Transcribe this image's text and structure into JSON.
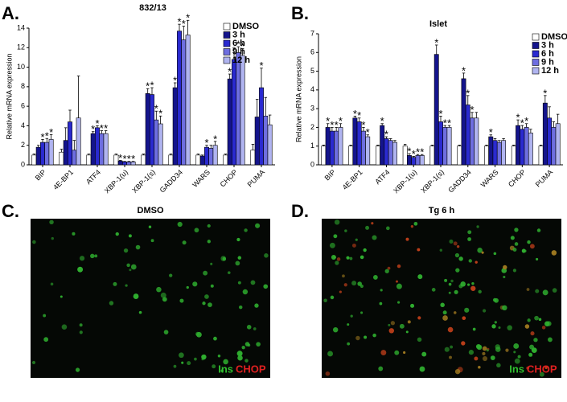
{
  "chart_data": [
    {
      "type": "bar",
      "panel": "A.",
      "title": "832/13",
      "y_label": "Relative mRNA expression",
      "categories": [
        "BIP",
        "4E-BP1",
        "ATF4",
        "XBP-1(u)",
        "XBP-1(s)",
        "GADD34",
        "WARS",
        "CHOP",
        "PUMA"
      ],
      "ylim": [
        0,
        14
      ],
      "yticks": [
        0,
        2,
        4,
        6,
        8,
        10,
        12,
        14
      ],
      "series": [
        {
          "name": "DMSO",
          "color": "#ffffff",
          "values": [
            1,
            1.3,
            1,
            1,
            1,
            1,
            1,
            1,
            1.5
          ],
          "errors": [
            0.1,
            0.3,
            0.1,
            0.1,
            0.1,
            0.1,
            0.1,
            0.1,
            0.6
          ],
          "markers": [
            null,
            null,
            null,
            null,
            null,
            null,
            null,
            null,
            null
          ]
        },
        {
          "name": "3 h",
          "color": "#14148c",
          "values": [
            1.8,
            2.5,
            3.2,
            0.4,
            7.3,
            7.9,
            0.9,
            8.8,
            4.9
          ],
          "errors": [
            0.2,
            1.3,
            0.2,
            0.05,
            0.5,
            0.5,
            0.1,
            0.5,
            1.8
          ],
          "markers": [
            null,
            null,
            "*",
            "*",
            "*",
            "*",
            null,
            "*",
            null
          ]
        },
        {
          "name": "6 h",
          "color": "#2a2ad0",
          "values": [
            2.3,
            4.4,
            3.8,
            0.3,
            7.2,
            13.7,
            1.8,
            10.8,
            7.9
          ],
          "errors": [
            0.3,
            1.2,
            0.2,
            0.05,
            0.7,
            0.7,
            0.2,
            0.7,
            2.0
          ],
          "markers": [
            "*",
            null,
            "*",
            "*",
            "*",
            "*",
            "*",
            "*",
            "*"
          ]
        },
        {
          "name": "9 h",
          "color": "#6e6ee0",
          "values": [
            2.3,
            1.5,
            3.2,
            0.3,
            4.6,
            12.8,
            1.7,
            11.5,
            5.0
          ],
          "errors": [
            0.4,
            1.0,
            0.3,
            0.05,
            0.9,
            1.4,
            0.3,
            0.6,
            1.9
          ],
          "markers": [
            "*",
            null,
            "*",
            "*",
            "*",
            "*",
            null,
            "*",
            null
          ]
        },
        {
          "name": "12 h",
          "color": "#b0b4f0",
          "values": [
            2.6,
            4.8,
            3.2,
            0.3,
            4.2,
            13.3,
            2.0,
            11.2,
            4.1
          ],
          "errors": [
            0.5,
            4.3,
            0.3,
            0.05,
            0.8,
            1.5,
            0.4,
            0.7,
            1.0
          ],
          "markers": [
            "*",
            null,
            "*",
            "*",
            "*",
            "*",
            "*",
            "*",
            null
          ]
        }
      ]
    },
    {
      "type": "bar",
      "panel": "B.",
      "title": "Islet",
      "y_label": "Relative mRNA expression",
      "categories": [
        "BIP",
        "4E-BP1",
        "ATF4",
        "XBP-1(u)",
        "XBP-1(s)",
        "GADD34",
        "WARS",
        "CHOP",
        "PUMA"
      ],
      "ylim": [
        0,
        7
      ],
      "yticks": [
        0,
        1,
        2,
        3,
        4,
        5,
        6,
        7
      ],
      "series": [
        {
          "name": "DMSO",
          "color": "#ffffff",
          "values": [
            1,
            1,
            1,
            1,
            1,
            1,
            1,
            1,
            1
          ],
          "errors": [
            0.05,
            0.05,
            0.05,
            0.1,
            0.05,
            0.05,
            0.05,
            0.05,
            0.05
          ],
          "markers": [
            null,
            null,
            null,
            null,
            null,
            null,
            null,
            null,
            null
          ]
        },
        {
          "name": "3 h",
          "color": "#14148c",
          "values": [
            2.0,
            2.5,
            2.1,
            0.5,
            5.9,
            4.6,
            1.5,
            2.1,
            3.3
          ],
          "errors": [
            0.2,
            0.1,
            0.1,
            0.1,
            0.5,
            0.3,
            0.1,
            0.3,
            0.4
          ],
          "markers": [
            "*",
            "*",
            "*",
            "*",
            "*",
            "*",
            "*",
            "*",
            "*"
          ]
        },
        {
          "name": "6 h",
          "color": "#2a2ad0",
          "values": [
            1.8,
            2.3,
            1.4,
            0.4,
            2.3,
            3.2,
            1.3,
            1.9,
            2.5
          ],
          "errors": [
            0.2,
            0.2,
            0.1,
            0.05,
            0.3,
            0.5,
            0.1,
            0.2,
            0.6
          ],
          "markers": [
            "*",
            "*",
            "*",
            "*",
            "*",
            "*",
            null,
            "*",
            null
          ]
        },
        {
          "name": "9 h",
          "color": "#6e6ee0",
          "values": [
            1.8,
            1.8,
            1.3,
            0.5,
            2.0,
            2.5,
            1.2,
            2.0,
            2.0
          ],
          "errors": [
            0.2,
            0.2,
            0.1,
            0.05,
            0.1,
            0.3,
            0.1,
            0.2,
            0.3
          ],
          "markers": [
            "*",
            "*",
            null,
            "*",
            "*",
            "*",
            null,
            "*",
            null
          ]
        },
        {
          "name": "12 h",
          "color": "#b0b4f0",
          "values": [
            2.0,
            1.5,
            1.2,
            0.5,
            2.0,
            2.5,
            1.3,
            1.7,
            2.2
          ],
          "errors": [
            0.2,
            0.1,
            0.1,
            0.05,
            0.1,
            0.3,
            0.1,
            0.2,
            0.5
          ],
          "markers": [
            "*",
            "*",
            null,
            "*",
            "*",
            null,
            null,
            null,
            null
          ]
        }
      ]
    }
  ],
  "images": [
    {
      "panel": "C.",
      "title": "DMSO",
      "stain_1": "Ins",
      "stain_2": "CHOP"
    },
    {
      "panel": "D.",
      "title": "Tg 6 h",
      "stain_1": "Ins",
      "stain_2": "CHOP"
    }
  ]
}
